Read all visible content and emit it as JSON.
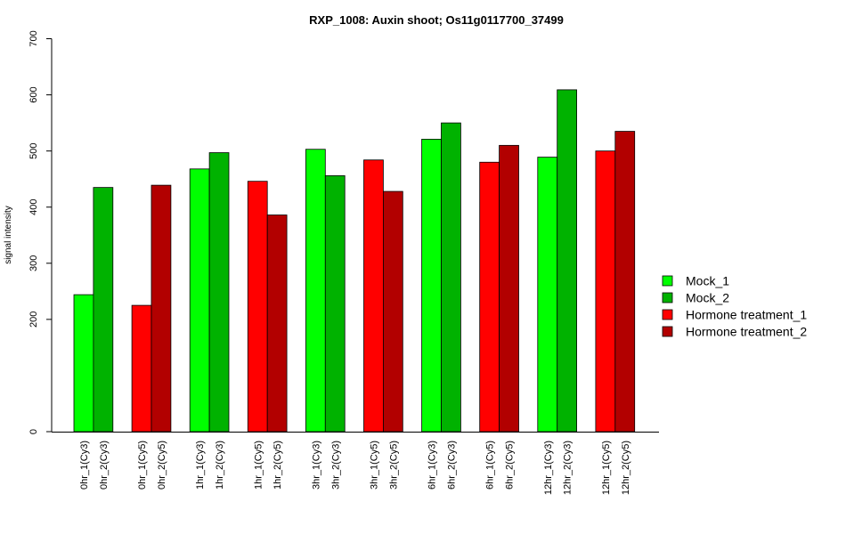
{
  "chart_data": {
    "type": "bar",
    "title": "RXP_1008: Auxin shoot; Os11g0117700_37499",
    "xlabel": "",
    "ylabel": "signal intensity",
    "ylim": [
      0,
      700
    ],
    "yticks": [
      0,
      200,
      300,
      400,
      500,
      600,
      700
    ],
    "legend_position": "right",
    "series": [
      {
        "name": "Mock_1",
        "color": "#00ff00"
      },
      {
        "name": "Mock_2",
        "color": "#00b200"
      },
      {
        "name": "Hormone treatment_1",
        "color": "#ff0000"
      },
      {
        "name": "Hormone treatment_2",
        "color": "#b20000"
      }
    ],
    "bars": [
      {
        "label": "0hr_1(Cy3)",
        "value": 244,
        "series": 0
      },
      {
        "label": "0hr_2(Cy3)",
        "value": 435,
        "series": 1
      },
      {
        "label": "0hr_1(Cy5)",
        "value": 225,
        "series": 2
      },
      {
        "label": "0hr_2(Cy5)",
        "value": 439,
        "series": 3
      },
      {
        "label": "1hr_1(Cy3)",
        "value": 468,
        "series": 0
      },
      {
        "label": "1hr_2(Cy3)",
        "value": 497,
        "series": 1
      },
      {
        "label": "1hr_1(Cy5)",
        "value": 446,
        "series": 2
      },
      {
        "label": "1hr_2(Cy5)",
        "value": 386,
        "series": 3
      },
      {
        "label": "3hr_1(Cy3)",
        "value": 503,
        "series": 0
      },
      {
        "label": "3hr_2(Cy3)",
        "value": 456,
        "series": 1
      },
      {
        "label": "3hr_1(Cy5)",
        "value": 484,
        "series": 2
      },
      {
        "label": "3hr_2(Cy5)",
        "value": 428,
        "series": 3
      },
      {
        "label": "6hr_1(Cy3)",
        "value": 521,
        "series": 0
      },
      {
        "label": "6hr_2(Cy3)",
        "value": 550,
        "series": 1
      },
      {
        "label": "6hr_1(Cy5)",
        "value": 480,
        "series": 2
      },
      {
        "label": "6hr_2(Cy5)",
        "value": 510,
        "series": 3
      },
      {
        "label": "12hr_1(Cy3)",
        "value": 489,
        "series": 0
      },
      {
        "label": "12hr_2(Cy3)",
        "value": 609,
        "series": 1
      },
      {
        "label": "12hr_1(Cy5)",
        "value": 500,
        "series": 2
      },
      {
        "label": "12hr_2(Cy5)",
        "value": 535,
        "series": 3
      }
    ]
  }
}
